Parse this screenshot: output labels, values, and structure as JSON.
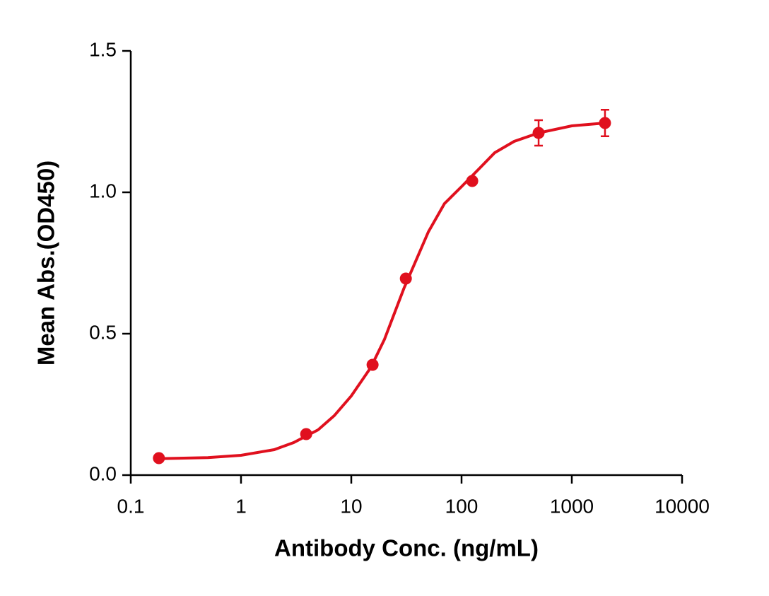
{
  "chart_data": {
    "type": "scatter",
    "x_label": "Antibody Conc. (ng/mL)",
    "y_label": "Mean Abs.(OD450)",
    "xscale": "log",
    "xlim": [
      0.1,
      10000
    ],
    "xticks": [
      0.1,
      1,
      10,
      100,
      1000,
      10000
    ],
    "ylim": [
      0,
      1.5
    ],
    "yticks": [
      {
        "value": 0,
        "label": "0.0"
      },
      {
        "value": 0.5,
        "label": "0.5"
      },
      {
        "value": 1,
        "label": "1.0"
      },
      {
        "value": 1.5,
        "label": "1.5"
      }
    ],
    "grid": false,
    "series": [
      {
        "color": "#e0101e",
        "x": [
          0.18,
          3.9,
          15.6,
          31.25,
          125,
          500,
          2000
        ],
        "values": [
          0.06,
          0.145,
          0.39,
          0.695,
          1.04,
          1.21,
          1.245
        ],
        "errors": [
          0,
          0,
          0,
          0,
          0,
          0.045,
          0.047
        ]
      },
      {
        "type": "line",
        "color": "#e0101e",
        "x": [
          0.18,
          0.5,
          1,
          2,
          3,
          5,
          7,
          10,
          15,
          20,
          30,
          50,
          70,
          100,
          150,
          200,
          300,
          500,
          1000,
          2000
        ],
        "values": [
          0.058,
          0.062,
          0.07,
          0.09,
          0.115,
          0.16,
          0.21,
          0.28,
          0.38,
          0.48,
          0.66,
          0.86,
          0.96,
          1.02,
          1.09,
          1.14,
          1.18,
          1.21,
          1.235,
          1.245
        ]
      }
    ]
  }
}
